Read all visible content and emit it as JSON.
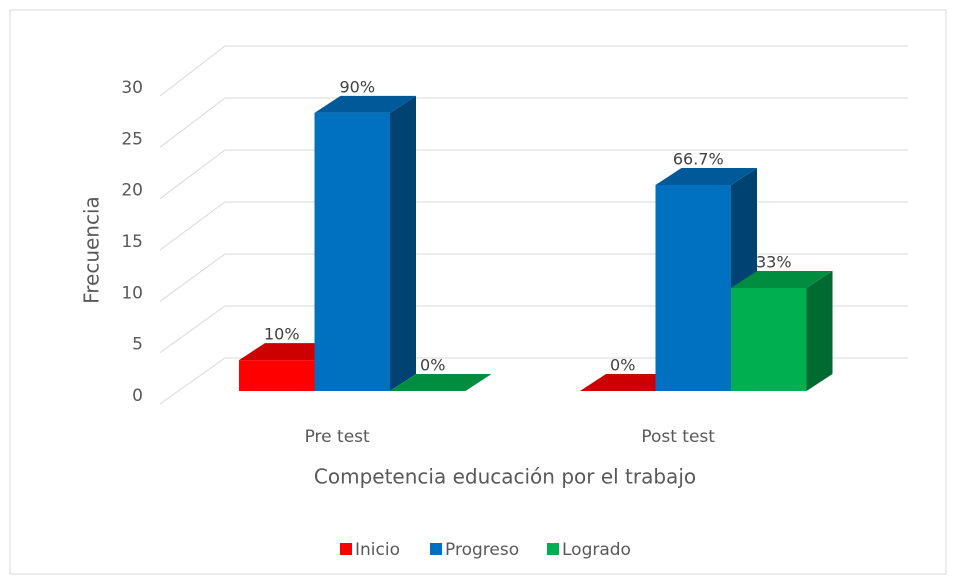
{
  "chart_data": {
    "type": "bar3d",
    "x_label": "Competencia educación por el trabajo",
    "y_label": "Frecuencia",
    "categories": [
      "Pre test",
      "Post test"
    ],
    "series": [
      {
        "name": "Inicio",
        "color": "#ff0000",
        "values": [
          3,
          0
        ],
        "labels": [
          "10%",
          "0%"
        ]
      },
      {
        "name": "Progreso",
        "color": "#0070c0",
        "values": [
          27,
          20
        ],
        "labels": [
          "90%",
          "66.7%"
        ]
      },
      {
        "name": "Logrado",
        "color": "#00b050",
        "values": [
          0,
          10
        ],
        "labels": [
          "0%",
          "33%"
        ]
      }
    ],
    "ylim": [
      0,
      30
    ],
    "yticks": [
      0,
      5,
      10,
      15,
      20,
      25,
      30
    ],
    "grid": true,
    "legend": "bottom"
  }
}
